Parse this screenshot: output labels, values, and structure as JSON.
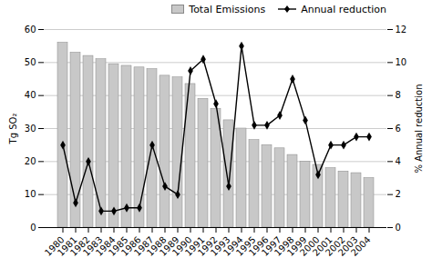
{
  "chart_data": {
    "type": "bar",
    "categories": [
      "1980",
      "1981",
      "1982",
      "1983",
      "1984",
      "1985",
      "1986",
      "1987",
      "1988",
      "1989",
      "1990",
      "1991",
      "1992",
      "1993",
      "1994",
      "1995",
      "1996",
      "1997",
      "1998",
      "1999",
      "2000",
      "2001",
      "2002",
      "2003",
      "2004"
    ],
    "ylabel": "Tg SO₂",
    "y2label": "% Annual reduction",
    "ylim": [
      0,
      60
    ],
    "yticks": [
      0,
      10,
      20,
      30,
      40,
      50,
      60
    ],
    "y2lim": [
      0,
      12
    ],
    "y2ticks": [
      0,
      2,
      4,
      6,
      8,
      10,
      12
    ],
    "grid": true,
    "legend": "upper right",
    "series": [
      {
        "name": "Total Emissions",
        "type": "bar",
        "color": "#c8c8c8",
        "values": [
          56,
          53,
          52,
          51,
          49.5,
          49,
          48.5,
          48,
          46,
          45.5,
          43.5,
          39,
          36,
          32.5,
          30,
          26.5,
          25,
          24,
          22,
          20,
          19,
          18,
          17,
          16.5,
          15
        ]
      },
      {
        "name": "Annual reduction",
        "type": "line",
        "axis": "y2",
        "color": "#000000",
        "marker": "diamond",
        "values": [
          5.0,
          1.5,
          4.0,
          1.0,
          1.0,
          1.2,
          1.2,
          5.0,
          2.5,
          2.0,
          9.5,
          10.2,
          7.5,
          2.5,
          11.0,
          6.2,
          6.2,
          6.8,
          9.0,
          6.5,
          3.2,
          5.0,
          5.0,
          5.5,
          5.5
        ]
      }
    ]
  }
}
